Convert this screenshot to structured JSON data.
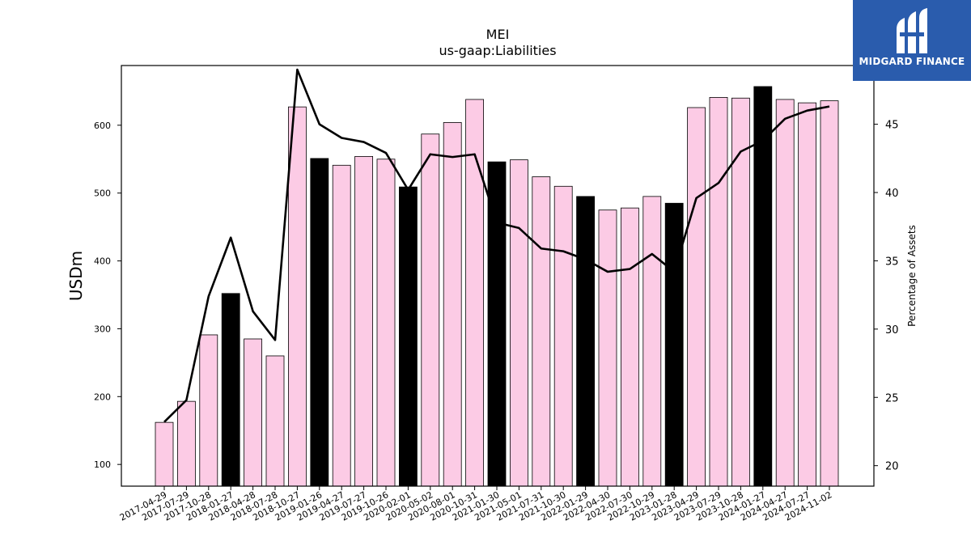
{
  "chart_data": {
    "type": "bar",
    "title": "MEI",
    "subtitle": "us-gaap:Liabilities",
    "ylabel": "USDm",
    "y2label": "Percentage of Assets",
    "ylim": [
      68,
      688
    ],
    "y2lim": [
      18.5,
      49.3
    ],
    "yticks": [
      100,
      200,
      300,
      400,
      500,
      600
    ],
    "y2ticks": [
      20,
      25,
      30,
      35,
      40,
      45
    ],
    "categories": [
      "2017-04-29",
      "2017-07-29",
      "2017-10-28",
      "2018-01-27",
      "2018-04-28",
      "2018-07-28",
      "2018-10-27",
      "2019-01-26",
      "2019-04-27",
      "2019-07-27",
      "2019-10-26",
      "2020-02-01",
      "2020-05-02",
      "2020-08-01",
      "2020-10-31",
      "2021-01-30",
      "2021-05-01",
      "2021-07-31",
      "2021-10-30",
      "2022-01-29",
      "2022-04-30",
      "2022-07-30",
      "2022-10-29",
      "2023-01-28",
      "2023-04-29",
      "2023-07-29",
      "2023-10-28",
      "2024-01-27",
      "2024-04-27",
      "2024-07-27",
      "2024-11-02"
    ],
    "series": [
      {
        "type": "bar",
        "axis": "left",
        "values": [
          162,
          193,
          291,
          352,
          285,
          260,
          627,
          551,
          541,
          554,
          550,
          509,
          587,
          604,
          638,
          546,
          549,
          524,
          510,
          495,
          475,
          478,
          495,
          485,
          626,
          641,
          640,
          657,
          638,
          633,
          636
        ],
        "highlight": [
          3,
          7,
          11,
          15,
          19,
          23,
          27
        ],
        "color": "#fccbe5",
        "highlight_color": "#000000"
      },
      {
        "type": "line",
        "axis": "right",
        "values": [
          23.2,
          24.8,
          32.4,
          36.7,
          31.3,
          29.2,
          49.0,
          45.0,
          44.0,
          43.7,
          42.9,
          40.2,
          42.8,
          42.6,
          42.8,
          37.8,
          37.4,
          35.9,
          35.7,
          35.1,
          34.2,
          34.4,
          35.5,
          34.2,
          39.6,
          40.7,
          43.0,
          43.8,
          45.4,
          46.0,
          46.3
        ],
        "color": "#000000"
      }
    ]
  },
  "logo": {
    "text": "MIDGARD FINANCE",
    "bg": "#2a5cad"
  }
}
